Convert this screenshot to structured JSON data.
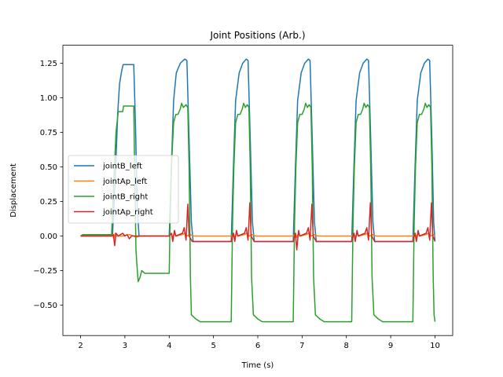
{
  "chart_data": {
    "type": "line",
    "title": "Joint Positions (Arb.)",
    "xlabel": "Time (s)",
    "ylabel": "Displacement",
    "xlim": [
      1.6,
      10.4
    ],
    "ylim": [
      -0.72,
      1.38
    ],
    "xticks": [
      2,
      3,
      4,
      5,
      6,
      7,
      8,
      9,
      10
    ],
    "yticks": [
      -0.5,
      -0.25,
      0.0,
      0.25,
      0.5,
      0.75,
      1.0,
      1.25
    ],
    "ytick_labels": [
      "−0.50",
      "−0.25",
      "0.00",
      "0.25",
      "0.50",
      "0.75",
      "1.00",
      "1.25"
    ],
    "grid": false,
    "legend_position": "center-left",
    "series": [
      {
        "name": "jointB_left",
        "color": "#1f77b4",
        "points": [
          [
            2.0,
            0.0
          ],
          [
            2.2,
            0.0
          ],
          [
            2.5,
            0.0
          ],
          [
            2.72,
            0.0
          ],
          [
            2.78,
            0.4
          ],
          [
            2.84,
            0.9
          ],
          [
            2.88,
            1.1
          ],
          [
            2.93,
            1.2
          ],
          [
            2.96,
            1.24
          ],
          [
            3.2,
            1.24
          ],
          [
            3.24,
            0.8
          ],
          [
            3.28,
            0.2
          ],
          [
            3.32,
            0.0
          ],
          [
            4.0,
            0.0
          ],
          [
            4.05,
            0.5
          ],
          [
            4.1,
            0.98
          ],
          [
            4.16,
            1.18
          ],
          [
            4.25,
            1.25
          ],
          [
            4.35,
            1.28
          ],
          [
            4.4,
            1.27
          ],
          [
            4.45,
            0.7
          ],
          [
            4.5,
            0.1
          ],
          [
            4.54,
            -0.04
          ],
          [
            5.4,
            -0.04
          ],
          [
            5.45,
            0.5
          ],
          [
            5.5,
            0.98
          ],
          [
            5.58,
            1.18
          ],
          [
            5.66,
            1.25
          ],
          [
            5.74,
            1.28
          ],
          [
            5.78,
            1.27
          ],
          [
            5.83,
            0.7
          ],
          [
            5.88,
            0.1
          ],
          [
            5.92,
            -0.04
          ],
          [
            6.8,
            -0.04
          ],
          [
            6.85,
            0.5
          ],
          [
            6.9,
            0.98
          ],
          [
            6.98,
            1.18
          ],
          [
            7.06,
            1.25
          ],
          [
            7.14,
            1.28
          ],
          [
            7.18,
            1.27
          ],
          [
            7.23,
            0.7
          ],
          [
            7.28,
            0.1
          ],
          [
            7.32,
            -0.04
          ],
          [
            8.12,
            -0.04
          ],
          [
            8.17,
            0.5
          ],
          [
            8.22,
            0.98
          ],
          [
            8.3,
            1.18
          ],
          [
            8.38,
            1.25
          ],
          [
            8.46,
            1.28
          ],
          [
            8.5,
            1.27
          ],
          [
            8.55,
            0.7
          ],
          [
            8.6,
            0.1
          ],
          [
            8.64,
            -0.04
          ],
          [
            9.5,
            -0.04
          ],
          [
            9.55,
            0.5
          ],
          [
            9.6,
            0.98
          ],
          [
            9.68,
            1.18
          ],
          [
            9.76,
            1.25
          ],
          [
            9.84,
            1.28
          ],
          [
            9.88,
            1.27
          ],
          [
            9.93,
            0.7
          ],
          [
            9.97,
            0.1
          ],
          [
            10.0,
            -0.04
          ]
        ]
      },
      {
        "name": "jointAp_left",
        "color": "#ff7f0e",
        "points": [
          [
            2.0,
            0.0
          ],
          [
            2.6,
            0.0
          ],
          [
            2.72,
            0.01
          ],
          [
            2.75,
            -0.02
          ],
          [
            2.78,
            0.02
          ],
          [
            2.8,
            0.0
          ],
          [
            2.95,
            0.0
          ],
          [
            3.1,
            0.01
          ],
          [
            3.2,
            0.0
          ],
          [
            3.25,
            -0.01
          ],
          [
            3.35,
            0.0
          ],
          [
            4.0,
            0.0
          ],
          [
            4.05,
            0.02
          ],
          [
            4.08,
            -0.01
          ],
          [
            4.12,
            0.02
          ],
          [
            4.15,
            0.0
          ],
          [
            4.3,
            0.01
          ],
          [
            4.35,
            0.02
          ],
          [
            4.4,
            0.0
          ],
          [
            4.48,
            0.01
          ],
          [
            4.55,
            0.0
          ],
          [
            5.4,
            0.0
          ],
          [
            5.45,
            0.02
          ],
          [
            5.48,
            -0.01
          ],
          [
            5.52,
            0.02
          ],
          [
            5.55,
            0.0
          ],
          [
            5.7,
            0.01
          ],
          [
            5.75,
            0.02
          ],
          [
            5.8,
            0.0
          ],
          [
            5.88,
            0.01
          ],
          [
            5.95,
            0.0
          ],
          [
            6.8,
            0.0
          ],
          [
            6.85,
            0.02
          ],
          [
            6.88,
            -0.01
          ],
          [
            6.92,
            0.02
          ],
          [
            6.95,
            0.0
          ],
          [
            7.1,
            0.01
          ],
          [
            7.15,
            0.02
          ],
          [
            7.2,
            0.0
          ],
          [
            7.28,
            0.01
          ],
          [
            7.35,
            0.0
          ],
          [
            8.12,
            0.0
          ],
          [
            8.17,
            0.02
          ],
          [
            8.2,
            -0.01
          ],
          [
            8.24,
            0.02
          ],
          [
            8.27,
            0.0
          ],
          [
            8.42,
            0.01
          ],
          [
            8.47,
            0.02
          ],
          [
            8.52,
            0.0
          ],
          [
            8.6,
            0.01
          ],
          [
            8.67,
            0.0
          ],
          [
            9.5,
            0.0
          ],
          [
            9.55,
            0.02
          ],
          [
            9.58,
            -0.01
          ],
          [
            9.62,
            0.02
          ],
          [
            9.65,
            0.0
          ],
          [
            9.8,
            0.01
          ],
          [
            9.85,
            0.02
          ],
          [
            9.9,
            0.0
          ],
          [
            9.96,
            0.01
          ],
          [
            10.0,
            0.0
          ]
        ]
      },
      {
        "name": "jointB_right",
        "color": "#2ca02c",
        "points": [
          [
            2.0,
            0.0
          ],
          [
            2.05,
            0.01
          ],
          [
            2.5,
            0.01
          ],
          [
            2.7,
            0.01
          ],
          [
            2.75,
            0.4
          ],
          [
            2.8,
            0.75
          ],
          [
            2.85,
            0.9
          ],
          [
            2.95,
            0.9
          ],
          [
            2.97,
            0.94
          ],
          [
            3.2,
            0.94
          ],
          [
            3.22,
            0.5
          ],
          [
            3.25,
            -0.1
          ],
          [
            3.27,
            -0.2
          ],
          [
            3.3,
            -0.33
          ],
          [
            3.34,
            -0.3
          ],
          [
            3.38,
            -0.25
          ],
          [
            3.45,
            -0.27
          ],
          [
            3.6,
            -0.27
          ],
          [
            4.0,
            -0.27
          ],
          [
            4.02,
            0.1
          ],
          [
            4.05,
            0.5
          ],
          [
            4.1,
            0.82
          ],
          [
            4.15,
            0.88
          ],
          [
            4.2,
            0.88
          ],
          [
            4.25,
            0.92
          ],
          [
            4.28,
            0.96
          ],
          [
            4.32,
            0.93
          ],
          [
            4.38,
            0.95
          ],
          [
            4.42,
            0.93
          ],
          [
            4.45,
            0.5
          ],
          [
            4.48,
            -0.3
          ],
          [
            4.5,
            -0.57
          ],
          [
            4.6,
            -0.6
          ],
          [
            4.7,
            -0.62
          ],
          [
            5.4,
            -0.62
          ],
          [
            5.43,
            0.1
          ],
          [
            5.46,
            0.5
          ],
          [
            5.5,
            0.82
          ],
          [
            5.55,
            0.88
          ],
          [
            5.6,
            0.88
          ],
          [
            5.65,
            0.92
          ],
          [
            5.68,
            0.96
          ],
          [
            5.72,
            0.93
          ],
          [
            5.76,
            0.95
          ],
          [
            5.8,
            0.93
          ],
          [
            5.83,
            0.5
          ],
          [
            5.86,
            -0.3
          ],
          [
            5.9,
            -0.57
          ],
          [
            6.0,
            -0.6
          ],
          [
            6.1,
            -0.62
          ],
          [
            6.8,
            -0.62
          ],
          [
            6.83,
            0.1
          ],
          [
            6.86,
            0.5
          ],
          [
            6.9,
            0.82
          ],
          [
            6.95,
            0.88
          ],
          [
            7.0,
            0.88
          ],
          [
            7.05,
            0.92
          ],
          [
            7.08,
            0.96
          ],
          [
            7.12,
            0.93
          ],
          [
            7.16,
            0.95
          ],
          [
            7.2,
            0.93
          ],
          [
            7.23,
            0.5
          ],
          [
            7.26,
            -0.3
          ],
          [
            7.3,
            -0.57
          ],
          [
            7.4,
            -0.6
          ],
          [
            7.5,
            -0.62
          ],
          [
            8.12,
            -0.62
          ],
          [
            8.15,
            0.1
          ],
          [
            8.18,
            0.5
          ],
          [
            8.22,
            0.82
          ],
          [
            8.27,
            0.88
          ],
          [
            8.32,
            0.88
          ],
          [
            8.37,
            0.92
          ],
          [
            8.4,
            0.96
          ],
          [
            8.44,
            0.93
          ],
          [
            8.48,
            0.95
          ],
          [
            8.52,
            0.93
          ],
          [
            8.55,
            0.5
          ],
          [
            8.58,
            -0.3
          ],
          [
            8.62,
            -0.57
          ],
          [
            8.72,
            -0.6
          ],
          [
            8.82,
            -0.62
          ],
          [
            9.5,
            -0.62
          ],
          [
            9.53,
            0.1
          ],
          [
            9.56,
            0.5
          ],
          [
            9.6,
            0.82
          ],
          [
            9.65,
            0.88
          ],
          [
            9.7,
            0.88
          ],
          [
            9.75,
            0.92
          ],
          [
            9.78,
            0.96
          ],
          [
            9.82,
            0.93
          ],
          [
            9.86,
            0.95
          ],
          [
            9.9,
            0.93
          ],
          [
            9.93,
            0.5
          ],
          [
            9.96,
            -0.3
          ],
          [
            9.98,
            -0.57
          ],
          [
            10.0,
            -0.62
          ]
        ]
      },
      {
        "name": "jointAp_right",
        "color": "#d62728",
        "points": [
          [
            2.0,
            0.0
          ],
          [
            2.7,
            0.0
          ],
          [
            2.74,
            0.01
          ],
          [
            2.77,
            -0.07
          ],
          [
            2.8,
            0.02
          ],
          [
            2.85,
            0.0
          ],
          [
            2.95,
            0.02
          ],
          [
            3.0,
            0.0
          ],
          [
            3.05,
            0.01
          ],
          [
            3.1,
            -0.02
          ],
          [
            3.15,
            0.0
          ],
          [
            4.0,
            0.0
          ],
          [
            4.05,
            0.02
          ],
          [
            4.08,
            -0.04
          ],
          [
            4.12,
            0.04
          ],
          [
            4.15,
            0.0
          ],
          [
            4.3,
            0.02
          ],
          [
            4.34,
            0.06
          ],
          [
            4.38,
            -0.03
          ],
          [
            4.42,
            0.23
          ],
          [
            4.45,
            0.0
          ],
          [
            4.52,
            -0.04
          ],
          [
            5.4,
            -0.04
          ],
          [
            5.45,
            0.02
          ],
          [
            5.48,
            -0.04
          ],
          [
            5.52,
            0.04
          ],
          [
            5.55,
            0.0
          ],
          [
            5.7,
            0.02
          ],
          [
            5.74,
            0.06
          ],
          [
            5.78,
            -0.03
          ],
          [
            5.82,
            0.24
          ],
          [
            5.85,
            0.0
          ],
          [
            5.92,
            -0.04
          ],
          [
            6.8,
            -0.04
          ],
          [
            6.85,
            0.02
          ],
          [
            6.88,
            -0.1
          ],
          [
            6.92,
            0.04
          ],
          [
            6.95,
            0.0
          ],
          [
            7.1,
            0.02
          ],
          [
            7.14,
            0.06
          ],
          [
            7.18,
            -0.03
          ],
          [
            7.22,
            0.23
          ],
          [
            7.25,
            0.0
          ],
          [
            7.32,
            -0.04
          ],
          [
            8.12,
            -0.04
          ],
          [
            8.17,
            0.02
          ],
          [
            8.2,
            -0.04
          ],
          [
            8.24,
            0.04
          ],
          [
            8.27,
            0.0
          ],
          [
            8.42,
            0.02
          ],
          [
            8.46,
            0.06
          ],
          [
            8.5,
            -0.03
          ],
          [
            8.54,
            0.24
          ],
          [
            8.57,
            0.0
          ],
          [
            8.64,
            -0.04
          ],
          [
            9.5,
            -0.04
          ],
          [
            9.55,
            0.02
          ],
          [
            9.58,
            -0.04
          ],
          [
            9.62,
            0.04
          ],
          [
            9.65,
            0.0
          ],
          [
            9.8,
            0.02
          ],
          [
            9.84,
            0.06
          ],
          [
            9.88,
            -0.03
          ],
          [
            9.92,
            0.24
          ],
          [
            9.95,
            0.0
          ],
          [
            10.0,
            -0.04
          ]
        ]
      }
    ]
  }
}
